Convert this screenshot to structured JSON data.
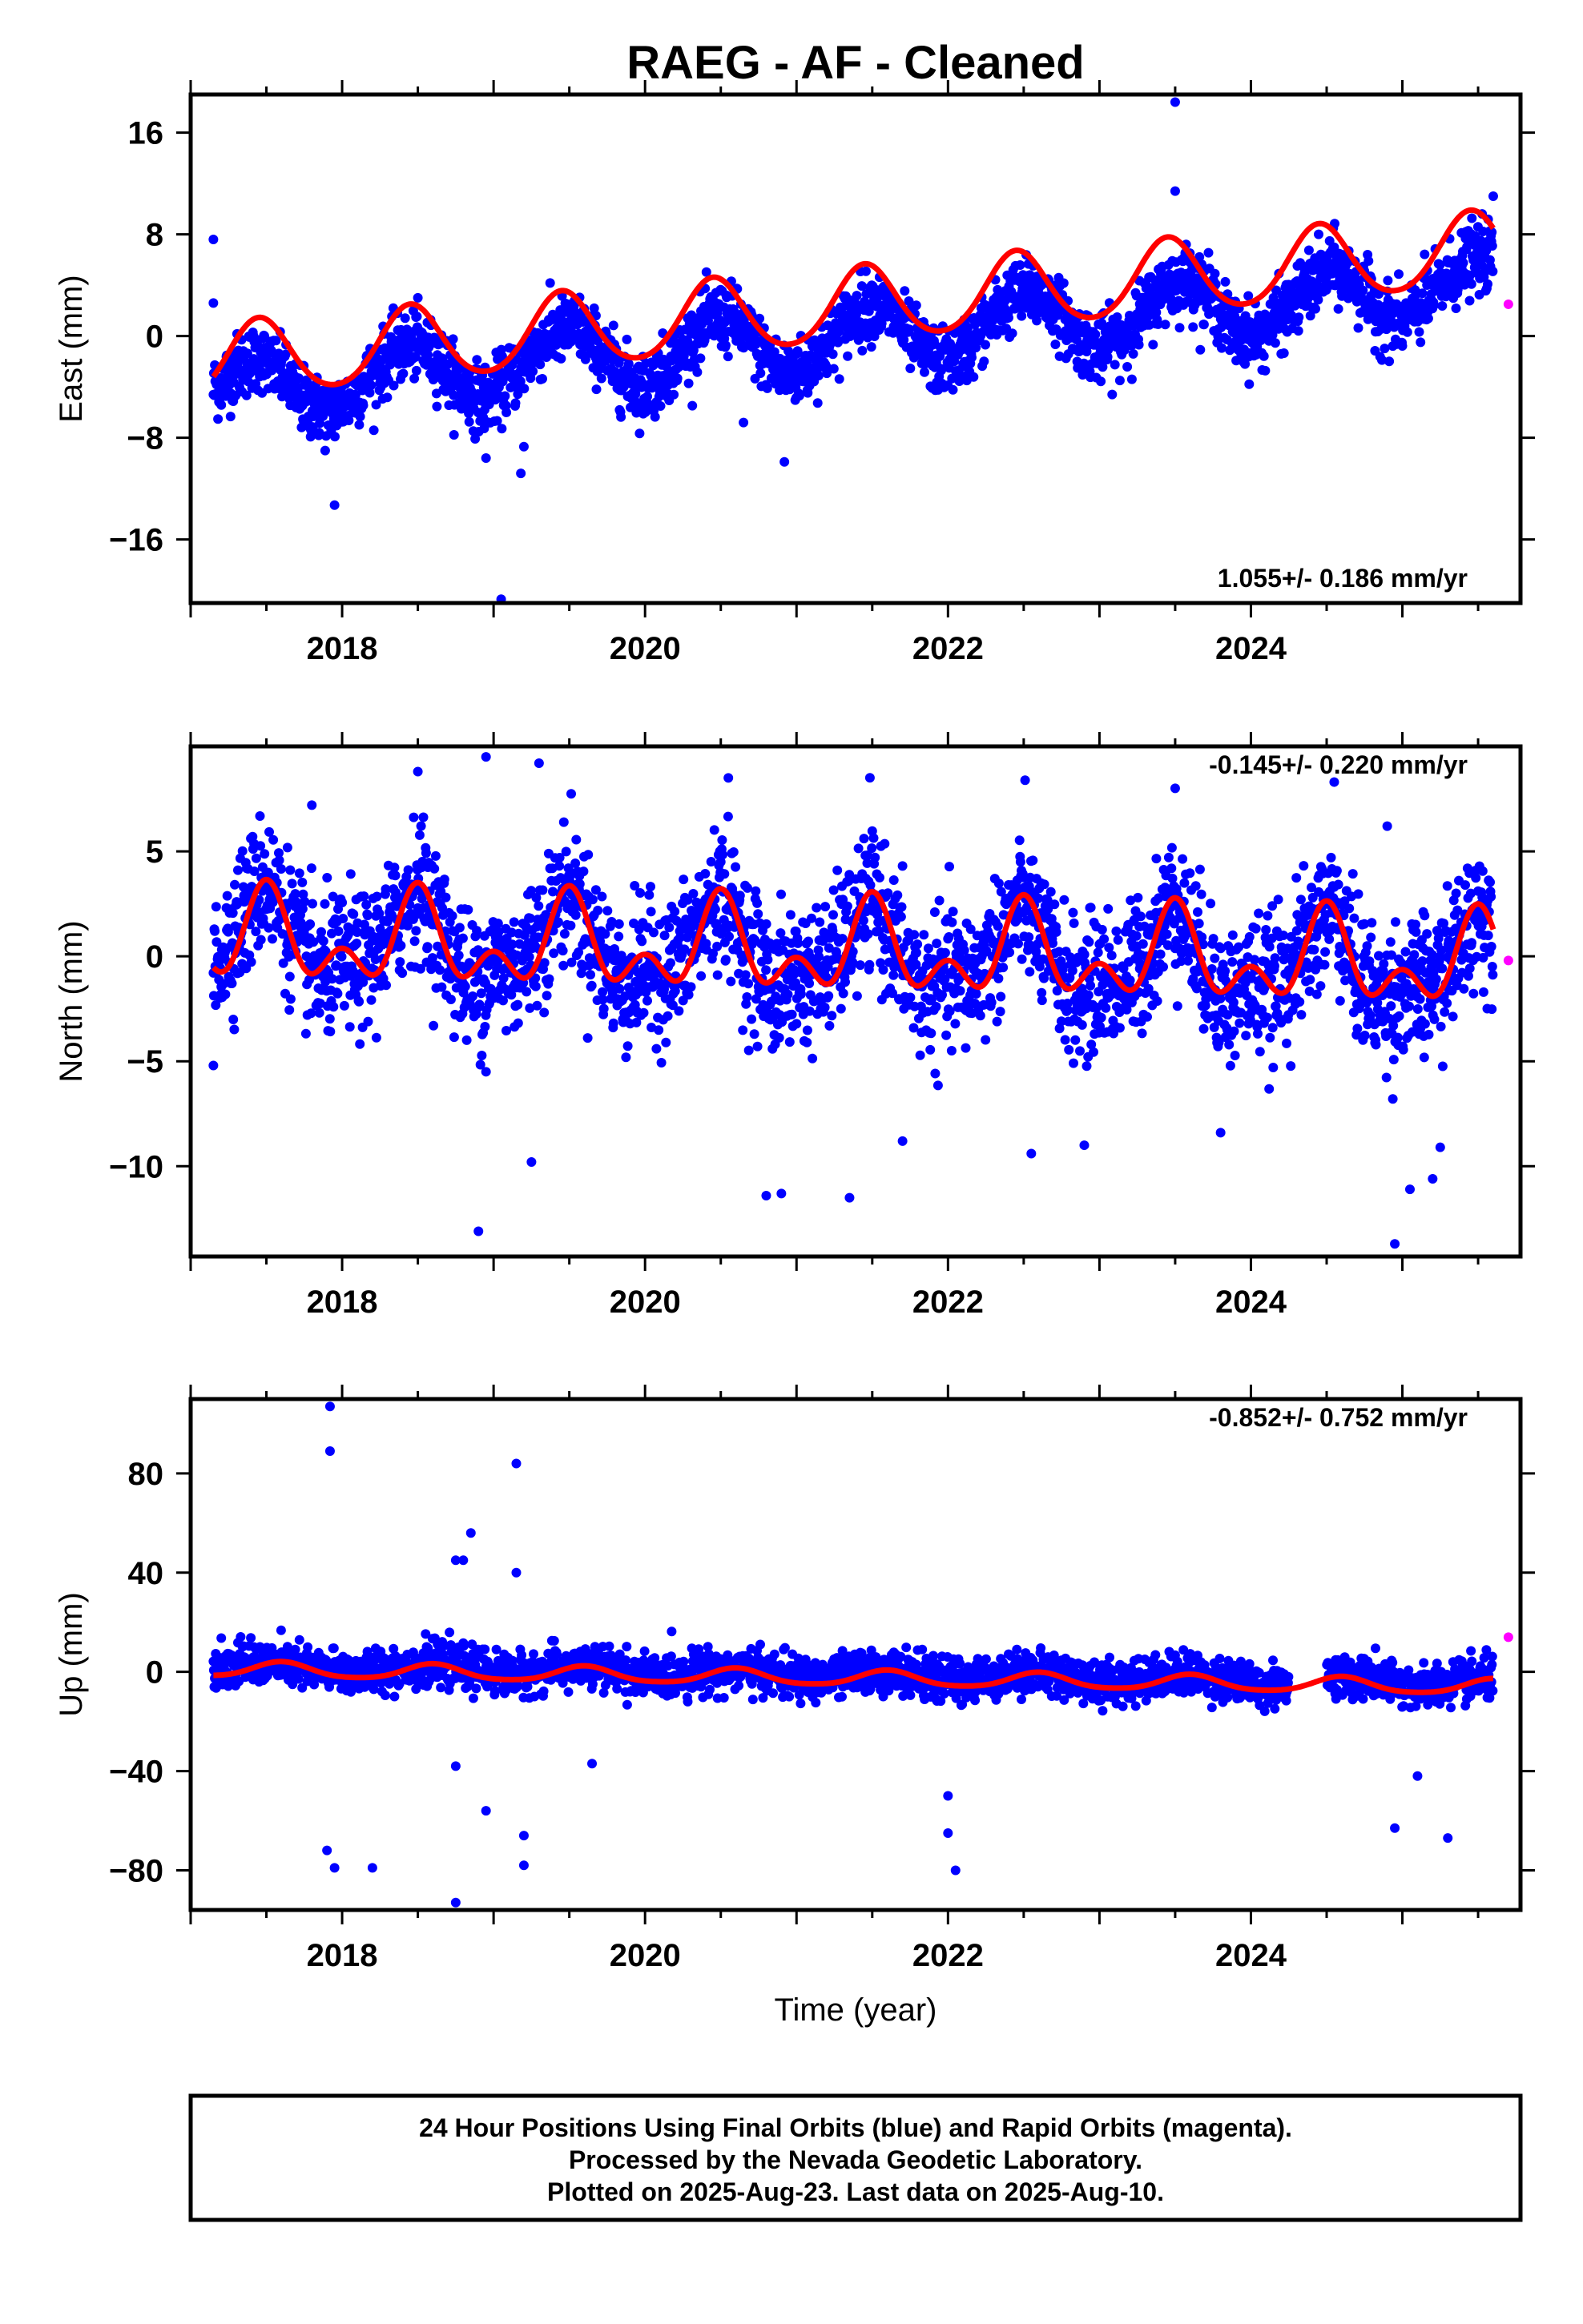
{
  "title": "RAEG  - AF - Cleaned",
  "colors": {
    "final": "#0000ff",
    "rapid": "#ff00ff",
    "model": "#ff0000",
    "frame": "#000000"
  },
  "footer": {
    "line1": "24 Hour Positions Using Final Orbits (blue) and Rapid Orbits (magenta).",
    "line2": "Processed by the Nevada Geodetic Laboratory.",
    "line3": "Plotted on 2025-Aug-23. Last data on 2025-Aug-10."
  },
  "chart_data": [
    {
      "type": "scatter",
      "panel": "east",
      "ylabel": "East (mm)",
      "xlabel": "",
      "xlim": [
        2017.0,
        2025.78
      ],
      "ylim": [
        -21,
        19
      ],
      "yticks": [
        16,
        8,
        0,
        -8,
        -16
      ],
      "ytick_labels": [
        "16",
        "8",
        "0",
        "−8",
        "−16"
      ],
      "xticks": [
        2018,
        2020,
        2022,
        2024
      ],
      "xtick_labels": [
        "2018",
        "2020",
        "2022",
        "2024"
      ],
      "rate_text": "1.055+/- 0.186 mm/yr",
      "rate_position": "bottom-right",
      "model": {
        "rate": 1.055,
        "offset": -2.0,
        "annual_amp": 2.9,
        "annual_phase_peak": 2017.45,
        "semi_amp": 0.3,
        "semi_phase_peak": 2017.45
      },
      "series": [
        {
          "name": "Final Orbits",
          "x": [
            2017.15,
            2017.3,
            2017.45,
            2017.6,
            2017.75,
            2017.9,
            2018.05,
            2018.2,
            2018.35,
            2018.5,
            2018.65,
            2018.8,
            2018.95,
            2019.1,
            2019.25,
            2019.4,
            2019.55,
            2019.7,
            2019.85,
            2020.0,
            2020.15,
            2020.3,
            2020.45,
            2020.6,
            2020.75,
            2020.9,
            2021.05,
            2021.2,
            2021.35,
            2021.5,
            2021.65,
            2021.8,
            2021.95,
            2022.1,
            2022.25,
            2022.4,
            2022.55,
            2022.7,
            2022.85,
            2023.0,
            2023.15,
            2023.3,
            2023.45,
            2023.6,
            2023.75,
            2023.9,
            2024.05,
            2024.2,
            2024.35,
            2024.55,
            2024.7,
            2024.85,
            2025.0,
            2025.15,
            2025.3,
            2025.45,
            2025.6
          ],
          "y": [
            -4.2,
            -2.5,
            -1.6,
            -3.0,
            -5.2,
            -6.1,
            -5.0,
            -3.0,
            -1.2,
            -0.6,
            -2.0,
            -4.3,
            -5.0,
            -3.5,
            -1.4,
            0.2,
            0.8,
            -1.0,
            -3.2,
            -4.2,
            -2.5,
            -0.4,
            1.5,
            1.2,
            -1.0,
            -3.0,
            -2.7,
            -0.8,
            1.4,
            2.6,
            1.5,
            -0.8,
            -2.2,
            -1.3,
            0.8,
            2.8,
            3.6,
            2.4,
            0.0,
            -1.2,
            -0.3,
            2.0,
            4.0,
            4.6,
            2.8,
            0.2,
            -0.1,
            1.5,
            3.5,
            5.5,
            4.0,
            1.6,
            1.0,
            2.6,
            4.6,
            6.0,
            6.4
          ],
          "outliers": {
            "x": [
              2017.15,
              2017.15,
              2017.95,
              2018.95,
              2019.05,
              2019.18,
              2019.2,
              2020.65,
              2020.92,
              2023.5,
              2023.5,
              2025.6
            ],
            "y": [
              7.6,
              2.6,
              -13.3,
              -9.6,
              -20.7,
              -10.8,
              -8.7,
              -6.8,
              -9.9,
              18.4,
              11.4,
              11.0
            ]
          }
        },
        {
          "name": "Rapid Orbits",
          "x": [
            2025.7
          ],
          "y": [
            2.5
          ]
        }
      ]
    },
    {
      "type": "scatter",
      "panel": "north",
      "ylabel": "North (mm)",
      "xlabel": "",
      "xlim": [
        2017.0,
        2025.78
      ],
      "ylim": [
        -14.3,
        10.0
      ],
      "yticks": [
        5,
        0,
        -5,
        -10
      ],
      "ytick_labels": [
        "5",
        "0",
        "−5",
        "−10"
      ],
      "xticks": [
        2018,
        2020,
        2022,
        2024
      ],
      "xtick_labels": [
        "2018",
        "2020",
        "2022",
        "2024"
      ],
      "rate_text": "-0.145+/- 0.220 mm/yr",
      "rate_position": "top-right",
      "model": {
        "rate": -0.145,
        "offset": 0.8,
        "annual_amp": 1.6,
        "annual_phase_peak": 2017.5,
        "semi_amp": 1.3,
        "semi_phase_peak": 2017.5
      },
      "series": [
        {
          "name": "Final Orbits",
          "x": [
            2017.15,
            2017.3,
            2017.5,
            2017.7,
            2017.85,
            2018.0,
            2018.15,
            2018.3,
            2018.5,
            2018.7,
            2018.85,
            2019.0,
            2019.15,
            2019.3,
            2019.5,
            2019.7,
            2019.85,
            2020.0,
            2020.15,
            2020.3,
            2020.5,
            2020.7,
            2020.85,
            2021.0,
            2021.15,
            2021.3,
            2021.5,
            2021.7,
            2021.85,
            2022.0,
            2022.15,
            2022.3,
            2022.5,
            2022.7,
            2022.85,
            2023.0,
            2023.15,
            2023.3,
            2023.5,
            2023.7,
            2023.85,
            2024.0,
            2024.15,
            2024.3,
            2024.55,
            2024.7,
            2024.85,
            2025.0,
            2025.15,
            2025.3,
            2025.5,
            2025.6
          ],
          "y": [
            -0.6,
            1.5,
            3.8,
            0.8,
            -1.0,
            -0.2,
            -0.4,
            0.9,
            3.6,
            0.5,
            -1.4,
            -0.4,
            -0.6,
            1.0,
            3.4,
            0.3,
            -1.5,
            -0.6,
            -0.8,
            0.6,
            3.2,
            0.1,
            -1.7,
            -0.8,
            -1.0,
            0.4,
            3.0,
            -0.2,
            -1.9,
            -1.0,
            -1.2,
            0.2,
            2.8,
            -0.4,
            -2.0,
            -1.2,
            -1.3,
            0.0,
            2.8,
            -0.6,
            -2.1,
            -1.3,
            -1.5,
            -0.2,
            2.6,
            -0.8,
            -2.2,
            -1.5,
            -1.6,
            -0.4,
            2.4,
            1.5
          ],
          "outliers": {
            "x": [
              2017.15,
              2017.8,
              2018.5,
              2018.95,
              2019.3,
              2019.25,
              2018.9,
              2018.95,
              2020.55,
              2020.8,
              2020.9,
              2021.35,
              2021.7,
              2022.55,
              2022.9,
              2023.5,
              2023.8,
              2024.55,
              2024.95,
              2025.05,
              2025.2,
              2025.25,
              2024.9
            ],
            "y": [
              -5.2,
              7.2,
              8.8,
              9.5,
              9.2,
              -9.8,
              -13.1,
              -5.5,
              8.5,
              -11.4,
              -11.3,
              -11.5,
              -8.8,
              -9.4,
              -9.0,
              8.0,
              -8.4,
              8.3,
              -13.7,
              -11.1,
              -10.6,
              -9.1,
              6.2
            ]
          }
        },
        {
          "name": "Rapid Orbits",
          "x": [
            2025.7
          ],
          "y": [
            -0.2
          ]
        }
      ]
    },
    {
      "type": "scatter",
      "panel": "up",
      "ylabel": "Up (mm)",
      "xlabel": "Time (year)",
      "xlim": [
        2017.0,
        2025.78
      ],
      "ylim": [
        -96,
        110
      ],
      "yticks": [
        80,
        40,
        0,
        -40,
        -80
      ],
      "ytick_labels": [
        "80",
        "40",
        "0",
        "−40",
        "−80"
      ],
      "xticks": [
        2018,
        2020,
        2022,
        2024
      ],
      "xtick_labels": [
        "2018",
        "2020",
        "2022",
        "2024"
      ],
      "rate_text": "-0.852+/- 0.752 mm/yr",
      "rate_position": "top-right",
      "model": {
        "rate": -0.852,
        "offset": 1.0,
        "annual_amp": 3.0,
        "annual_phase_peak": 2017.6,
        "semi_amp": 0.5,
        "semi_phase_peak": 2017.6
      },
      "series": [
        {
          "name": "Final Orbits",
          "x": [
            2017.15,
            2017.3,
            2017.5,
            2017.7,
            2017.9,
            2018.1,
            2018.3,
            2018.5,
            2018.7,
            2018.9,
            2019.1,
            2019.3,
            2019.5,
            2019.7,
            2019.9,
            2020.1,
            2020.3,
            2020.5,
            2020.7,
            2020.9,
            2021.1,
            2021.3,
            2021.5,
            2021.7,
            2021.9,
            2022.1,
            2022.3,
            2022.5,
            2022.7,
            2022.9,
            2023.1,
            2023.3,
            2023.5,
            2023.7,
            2023.9,
            2024.1,
            2024.3,
            2024.55,
            2024.75,
            2024.95,
            2025.15,
            2025.35,
            2025.6
          ],
          "y": [
            1.8,
            3.0,
            3.6,
            2.2,
            0.2,
            -0.6,
            1.2,
            2.8,
            2.6,
            0.8,
            -1.4,
            0.2,
            2.0,
            1.6,
            -0.8,
            -2.4,
            -0.6,
            1.2,
            0.8,
            -1.6,
            -3.2,
            -1.2,
            0.4,
            -0.2,
            -2.6,
            -4.0,
            -1.8,
            -0.2,
            -0.6,
            -3.4,
            -4.8,
            -2.6,
            -1.0,
            -1.4,
            -4.2,
            -5.8,
            -3.4,
            -1.8,
            -2.2,
            -5.0,
            -6.6,
            -4.2,
            -2.6
          ],
          "outliers": {
            "x": [
              2017.92,
              2017.92,
              2017.9,
              2017.95,
              2018.2,
              2018.75,
              2018.85,
              2018.8,
              2018.75,
              2019.15,
              2019.15,
              2019.2,
              2018.95,
              2019.2,
              2019.65,
              2022.0,
              2022.05,
              2022.0,
              2024.95,
              2025.1,
              2025.3,
              2018.75
            ],
            "y": [
              107,
              89,
              -72,
              -79,
              -79,
              45,
              56,
              45,
              -38,
              84,
              40,
              -66,
              -56,
              -78,
              -37,
              -50,
              -80,
              -65,
              -63,
              -42,
              -67,
              -93
            ]
          }
        },
        {
          "name": "Rapid Orbits",
          "x": [
            2025.7
          ],
          "y": [
            14
          ]
        }
      ]
    }
  ]
}
